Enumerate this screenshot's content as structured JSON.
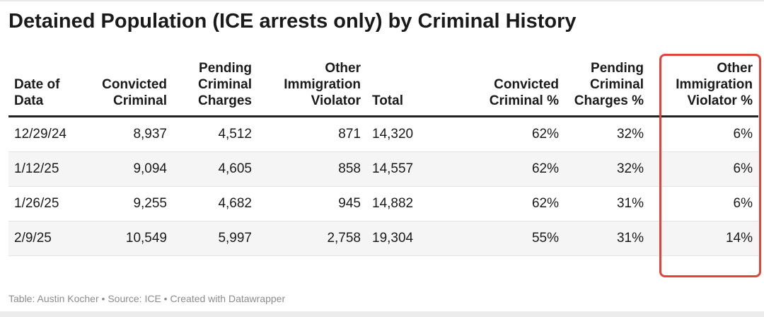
{
  "chart_data": {
    "type": "table",
    "title": "Detained Population (ICE arrests only) by Criminal History",
    "columns": [
      {
        "label": "Date of Data",
        "align": "left"
      },
      {
        "label": "Convicted Criminal",
        "align": "right"
      },
      {
        "label": "Pending Criminal Charges",
        "align": "right"
      },
      {
        "label": "Other Immigration Violator",
        "align": "right"
      },
      {
        "label": "Total",
        "align": "left"
      },
      {
        "label": "Convicted Criminal %",
        "align": "right"
      },
      {
        "label": "Pending Criminal Charges %",
        "align": "right"
      },
      {
        "label": "Other Immigration Violator %",
        "align": "right"
      }
    ],
    "rows": [
      [
        "12/29/24",
        "8,937",
        "4,512",
        "871",
        "14,320",
        "62%",
        "32%",
        "6%"
      ],
      [
        "1/12/25",
        "9,094",
        "4,605",
        "858",
        "14,557",
        "62%",
        "32%",
        "6%"
      ],
      [
        "1/26/25",
        "9,255",
        "4,682",
        "945",
        "14,882",
        "62%",
        "31%",
        "6%"
      ],
      [
        "2/9/25",
        "10,549",
        "5,997",
        "2,758",
        "19,304",
        "55%",
        "31%",
        "14%"
      ]
    ],
    "highlighted_column": "Other Immigration Violator %",
    "highlight_color": "#e0443a",
    "striped_row_color": "#f5f5f5"
  },
  "footer": {
    "text": "Table: Austin Kocher • Source: ICE • Created with Datawrapper"
  }
}
